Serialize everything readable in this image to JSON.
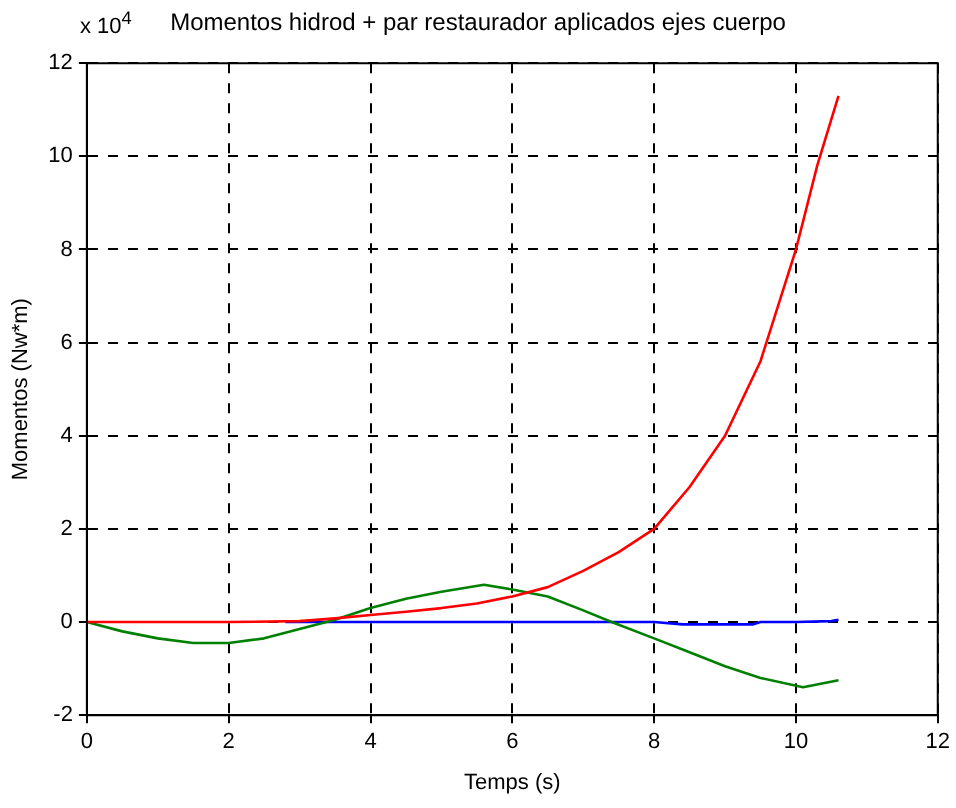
{
  "chart_data": {
    "type": "line",
    "title": "Momentos hidrod + par restaurador aplicados ejes cuerpo",
    "xlabel": "Temps (s)",
    "ylabel": "Momentos (Nw*m)",
    "annotations": [
      "x 10$^{4}$"
    ],
    "series": [
      {
        "color": "#ff0000",
        "x": [
          0,
          1,
          2,
          3,
          3.5,
          4,
          4.5,
          5,
          5.5,
          6,
          6.5,
          7,
          7.5,
          8,
          8.5,
          9,
          9.5,
          10,
          10.3,
          10.6
        ],
        "values": [
          0,
          0,
          0,
          0.02,
          0.08,
          0.15,
          0.22,
          0.3,
          0.4,
          0.55,
          0.75,
          1.1,
          1.5,
          2.0,
          2.9,
          4.0,
          5.6,
          8.0,
          9.8,
          11.3
        ]
      },
      {
        "color": "#008000",
        "x": [
          0,
          0.5,
          1,
          1.5,
          2,
          2.5,
          3,
          3.5,
          4,
          4.5,
          5,
          5.6,
          6,
          6.5,
          7,
          7.4,
          8,
          8.5,
          9,
          9.5,
          10.1,
          10.6
        ],
        "values": [
          0,
          -0.2,
          -0.35,
          -0.45,
          -0.45,
          -0.35,
          -0.15,
          0.05,
          0.3,
          0.5,
          0.65,
          0.8,
          0.7,
          0.55,
          0.25,
          0,
          -0.35,
          -0.65,
          -0.95,
          -1.2,
          -1.4,
          -1.25
        ]
      },
      {
        "color": "#0000ff",
        "x": [
          2.8,
          4,
          6,
          8,
          8.4,
          9.4,
          9.5,
          10,
          10.5,
          10.6
        ],
        "values": [
          0,
          0,
          0,
          0,
          -0.05,
          -0.05,
          0,
          0,
          0.02,
          0.05
        ]
      }
    ],
    "xlim": [
      0,
      12
    ],
    "xticks": [
      0,
      2,
      4,
      6,
      8,
      10,
      12
    ],
    "ylim": [
      -2,
      12
    ],
    "yticks": [
      -2,
      0,
      2,
      4,
      6,
      8,
      10,
      12
    ],
    "grid": true,
    "legend": false,
    "line_style": "solid",
    "marker": "none"
  }
}
